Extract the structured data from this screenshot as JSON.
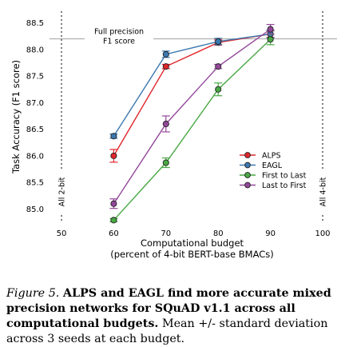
{
  "chart_data": {
    "type": "line",
    "ylabel": "Task Accuracy (F1 score)",
    "xlabel_line1": "Computational budget",
    "xlabel_line2": "(percent of 4-bit BERT-base BMACs)",
    "xlim": [
      50,
      100
    ],
    "ylim": [
      84.75,
      88.72
    ],
    "xticks": [
      50,
      60,
      70,
      80,
      90,
      100
    ],
    "yticks": [
      85.0,
      85.5,
      86.0,
      86.5,
      87.0,
      87.5,
      88.0,
      88.5
    ],
    "reference_line": {
      "y": 88.2,
      "label_line1": "Full precision",
      "label_line2": "F1 score"
    },
    "vertical_markers": [
      {
        "x": 50,
        "label": "All 2-bit"
      },
      {
        "x": 100,
        "label": "All 4-bit"
      }
    ],
    "legend_position": "lower-right",
    "series": [
      {
        "name": "ALPS",
        "color": "#e0262b",
        "x": [
          60,
          70,
          80,
          90
        ],
        "y": [
          86.0,
          87.68,
          88.13,
          88.29
        ],
        "err": [
          0.12,
          0.04,
          0.05,
          0.06
        ]
      },
      {
        "name": "EAGL",
        "color": "#3b78b0",
        "x": [
          60,
          70,
          80,
          90
        ],
        "y": [
          86.37,
          87.91,
          88.15,
          88.29
        ],
        "err": [
          0.04,
          0.06,
          0.06,
          0.07
        ]
      },
      {
        "name": "First to Last",
        "color": "#49a844",
        "x": [
          60,
          70,
          80,
          90
        ],
        "y": [
          84.79,
          85.87,
          87.25,
          88.19
        ],
        "err": [
          0.03,
          0.09,
          0.12,
          0.1
        ]
      },
      {
        "name": "Last to First",
        "color": "#93479a",
        "x": [
          60,
          70,
          80,
          90
        ],
        "y": [
          85.1,
          86.6,
          87.68,
          88.38
        ],
        "err": [
          0.09,
          0.15,
          0.04,
          0.09
        ]
      }
    ]
  },
  "caption": {
    "label": "Figure 5.",
    "bold": "ALPS and EAGL find more accurate mixed precision networks for SQuAD v1.1 across all computational budgets.",
    "rest": "Mean +/- standard deviation across 3 seeds at each budget."
  }
}
